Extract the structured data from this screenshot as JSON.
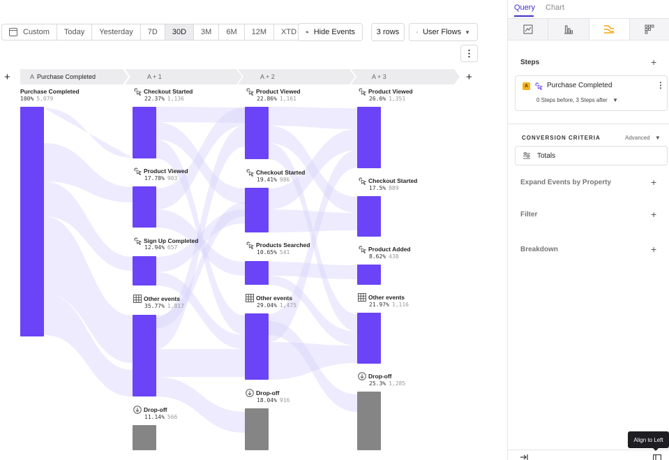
{
  "toolbar": {
    "date_ranges": [
      {
        "label": "Custom",
        "active": false
      },
      {
        "label": "Today",
        "active": false
      },
      {
        "label": "Yesterday",
        "active": false
      },
      {
        "label": "7D",
        "active": false
      },
      {
        "label": "30D",
        "active": true
      },
      {
        "label": "3M",
        "active": false
      },
      {
        "label": "6M",
        "active": false
      },
      {
        "label": "12M",
        "active": false
      },
      {
        "label": "XTD",
        "active": false
      }
    ],
    "hide_events_label": "Hide Events",
    "rows_label": "3 rows",
    "viz_label": "User Flows"
  },
  "steps": [
    {
      "letter": "A",
      "label": "Purchase Completed"
    },
    {
      "letter": "",
      "label": "A + 1"
    },
    {
      "letter": "",
      "label": "A + 2"
    },
    {
      "letter": "",
      "label": "A + 3"
    }
  ],
  "columns": [
    {
      "nodes": [
        {
          "name": "Purchase Completed",
          "pct": "100%",
          "count": "5,079",
          "icon": "none",
          "kind": "event"
        }
      ]
    },
    {
      "nodes": [
        {
          "name": "Checkout Started",
          "pct": "22.37%",
          "count": "1,136",
          "icon": "event-icon",
          "kind": "event"
        },
        {
          "name": "Product Viewed",
          "pct": "17.78%",
          "count": "903",
          "icon": "event-icon",
          "kind": "event"
        },
        {
          "name": "Sign Up Completed",
          "pct": "12.94%",
          "count": "657",
          "icon": "event-icon",
          "kind": "event"
        },
        {
          "name": "Other events",
          "pct": "35.77%",
          "count": "1,817",
          "icon": "grid-icon",
          "kind": "other"
        },
        {
          "name": "Drop-off",
          "pct": "11.14%",
          "count": "566",
          "icon": "dropoff-icon",
          "kind": "dropoff"
        }
      ]
    },
    {
      "nodes": [
        {
          "name": "Product Viewed",
          "pct": "22.86%",
          "count": "1,161",
          "icon": "event-icon",
          "kind": "event"
        },
        {
          "name": "Checkout Started",
          "pct": "19.41%",
          "count": "986",
          "icon": "event-icon",
          "kind": "event"
        },
        {
          "name": "Products Searched",
          "pct": "10.65%",
          "count": "541",
          "icon": "event-icon",
          "kind": "event"
        },
        {
          "name": "Other events",
          "pct": "29.04%",
          "count": "1,475",
          "icon": "grid-icon",
          "kind": "other"
        },
        {
          "name": "Drop-off",
          "pct": "18.04%",
          "count": "916",
          "icon": "dropoff-icon",
          "kind": "dropoff"
        }
      ]
    },
    {
      "nodes": [
        {
          "name": "Product Viewed",
          "pct": "26.6%",
          "count": "1,351",
          "icon": "event-icon",
          "kind": "event"
        },
        {
          "name": "Checkout Started",
          "pct": "17.5%",
          "count": "889",
          "icon": "event-icon",
          "kind": "event"
        },
        {
          "name": "Product Added",
          "pct": "8.62%",
          "count": "438",
          "icon": "event-icon",
          "kind": "event"
        },
        {
          "name": "Other events",
          "pct": "21.97%",
          "count": "1,116",
          "icon": "grid-icon",
          "kind": "other"
        },
        {
          "name": "Drop-off",
          "pct": "25.3%",
          "count": "1,285",
          "icon": "dropoff-icon",
          "kind": "dropoff"
        }
      ]
    }
  ],
  "colors": {
    "node": "#6a44f6",
    "dropoff": "#858585",
    "link": "#d8d2fb",
    "accent": "#3d2fd1",
    "badge": "#f6b21c"
  },
  "panel": {
    "tabs": [
      {
        "label": "Query",
        "active": true
      },
      {
        "label": "Chart",
        "active": false
      }
    ],
    "viz_icons": [
      "line-chart-icon",
      "bar-chart-icon",
      "flows-icon",
      "grid-dots-icon"
    ],
    "steps_title": "Steps",
    "step_card": {
      "letter": "A",
      "event": "Purchase Completed",
      "steps_summary": "0 Steps before, 3 Steps after"
    },
    "conversion_title": "CONVERSION CRITERIA",
    "advanced_label": "Advanced",
    "totals_label": "Totals",
    "expand_label": "Expand Events by Property",
    "filter_label": "Filter",
    "breakdown_label": "Breakdown",
    "tooltip": "Align to Left"
  }
}
